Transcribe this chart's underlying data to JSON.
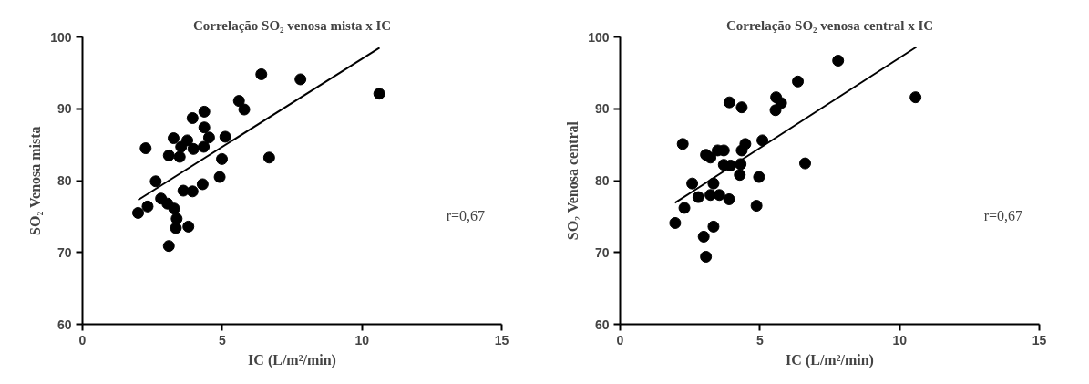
{
  "chart_data": [
    {
      "type": "scatter",
      "title": "Correlação SO₂ venosa mista x IC",
      "xlabel": "IC (L/m²/min)",
      "ylabel": "SO₂ Venosa mista",
      "xlim": [
        0,
        15
      ],
      "xticks": [
        0,
        5,
        10,
        15
      ],
      "ylim": [
        60,
        100
      ],
      "yticks": [
        60,
        70,
        80,
        90,
        100
      ],
      "grid": false,
      "annotations": [
        "r=0,67"
      ],
      "series": [
        {
          "marker": "circle",
          "color": "#000000",
          "x": [
            1.99,
            2.33,
            2.26,
            2.62,
            2.81,
            3.04,
            3.09,
            3.26,
            3.09,
            3.28,
            3.37,
            3.34,
            3.48,
            3.53,
            3.61,
            3.75,
            3.79,
            3.94,
            3.94,
            3.97,
            4.3,
            4.36,
            4.36,
            4.34,
            4.53,
            4.91,
            4.99,
            5.11,
            5.6,
            5.79,
            6.4,
            6.68,
            7.8,
            10.62
          ],
          "values": [
            75.5,
            76.4,
            84.5,
            79.9,
            77.5,
            76.8,
            70.9,
            85.9,
            83.5,
            76.1,
            74.7,
            73.4,
            83.3,
            84.7,
            78.6,
            85.6,
            73.6,
            78.5,
            88.7,
            84.4,
            79.5,
            89.6,
            87.4,
            84.7,
            86.0,
            80.5,
            83.0,
            86.1,
            91.1,
            89.9,
            94.8,
            83.2,
            94.1,
            92.1
          ]
        },
        {
          "type": "line",
          "color": "#000000",
          "line_style": "solid",
          "x": [
            1.99,
            10.63
          ],
          "values": [
            77.3,
            98.5
          ]
        }
      ]
    },
    {
      "type": "scatter",
      "title": "Correlação SO₂ venosa central x IC",
      "xlabel": "IC (L/m²/min)",
      "ylabel": "SO₂ Venosa central",
      "xlim": [
        0,
        15
      ],
      "xticks": [
        0,
        5,
        10,
        15
      ],
      "ylim": [
        60,
        100
      ],
      "yticks": [
        60,
        70,
        80,
        90,
        100
      ],
      "grid": false,
      "annotations": [
        "r=0,67"
      ],
      "series": [
        {
          "marker": "circle",
          "color": "#000000",
          "x": [
            1.97,
            2.24,
            2.3,
            2.58,
            2.8,
            2.99,
            3.07,
            3.07,
            3.23,
            3.23,
            3.34,
            3.34,
            3.49,
            3.55,
            3.71,
            3.71,
            3.9,
            3.91,
            3.95,
            4.28,
            4.31,
            4.35,
            4.35,
            4.48,
            4.88,
            4.97,
            5.09,
            5.56,
            5.58,
            5.76,
            6.36,
            6.62,
            7.8,
            10.57
          ],
          "values": [
            74.1,
            85.1,
            76.2,
            79.6,
            77.7,
            72.2,
            69.4,
            83.6,
            83.2,
            78.0,
            79.6,
            73.6,
            84.2,
            78.0,
            84.2,
            82.2,
            77.4,
            90.9,
            82.1,
            80.8,
            82.3,
            90.2,
            84.2,
            85.1,
            76.5,
            80.5,
            85.6,
            89.8,
            91.6,
            90.8,
            93.8,
            82.4,
            96.7,
            91.6
          ]
        },
        {
          "type": "line",
          "color": "#000000",
          "line_style": "solid",
          "x": [
            1.96,
            10.6
          ],
          "values": [
            76.9,
            98.6
          ]
        }
      ]
    }
  ]
}
